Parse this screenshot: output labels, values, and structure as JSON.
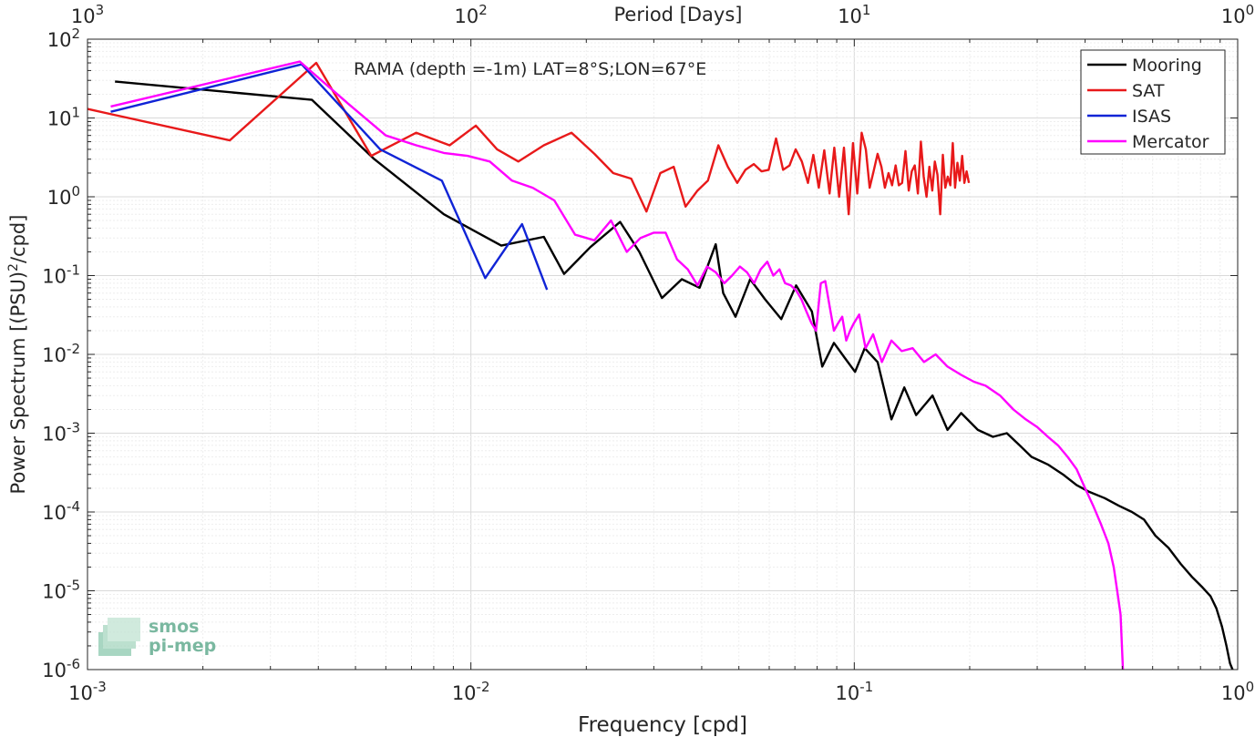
{
  "chart_data": {
    "type": "line",
    "title": "RAMA (depth =-1m) LAT=8°S;LON=67°E",
    "xlabel": "Frequency [cpd]",
    "ylabel_main": "Power Spectrum [(PSU)",
    "ylabel_sup": "2",
    "ylabel_tail": "/cpd]",
    "top_axis_label": "Period [Days]",
    "x_scale": "log",
    "y_scale": "log",
    "xlim": [
      0.001,
      1
    ],
    "ylim": [
      1e-06,
      100
    ],
    "grid": true,
    "legend_position": "top-right",
    "x_ticks": [
      {
        "value": 0.001,
        "base": "10",
        "exp": "-3"
      },
      {
        "value": 0.01,
        "base": "10",
        "exp": "-2"
      },
      {
        "value": 0.1,
        "base": "10",
        "exp": "-1"
      },
      {
        "value": 1,
        "base": "10",
        "exp": "0"
      }
    ],
    "top_ticks": [
      {
        "freq": 0.001,
        "base": "10",
        "exp": "3"
      },
      {
        "freq": 0.01,
        "base": "10",
        "exp": "2"
      },
      {
        "freq": 0.1,
        "base": "10",
        "exp": "1"
      },
      {
        "freq": 1,
        "base": "10",
        "exp": "0"
      }
    ],
    "y_ticks": [
      {
        "value": 100,
        "base": "10",
        "exp": "2"
      },
      {
        "value": 10,
        "base": "10",
        "exp": "1"
      },
      {
        "value": 1,
        "base": "10",
        "exp": "0"
      },
      {
        "value": 0.1,
        "base": "10",
        "exp": "-1"
      },
      {
        "value": 0.01,
        "base": "10",
        "exp": "-2"
      },
      {
        "value": 0.001,
        "base": "10",
        "exp": "-3"
      },
      {
        "value": 0.0001,
        "base": "10",
        "exp": "-4"
      },
      {
        "value": 1e-05,
        "base": "10",
        "exp": "-5"
      },
      {
        "value": 1e-06,
        "base": "10",
        "exp": "-6"
      }
    ],
    "series": [
      {
        "name": "Mooring",
        "color": "#000000",
        "x": [
          0.00118,
          0.00385,
          0.0056,
          0.0085,
          0.012,
          0.0155,
          0.0175,
          0.0205,
          0.0245,
          0.0275,
          0.0315,
          0.0355,
          0.0395,
          0.0435,
          0.0455,
          0.049,
          0.0535,
          0.0585,
          0.0645,
          0.0705,
          0.0775,
          0.0825,
          0.0885,
          0.0945,
          0.1005,
          0.1065,
          0.115,
          0.125,
          0.135,
          0.145,
          0.16,
          0.175,
          0.19,
          0.21,
          0.23,
          0.25,
          0.27,
          0.29,
          0.32,
          0.35,
          0.38,
          0.41,
          0.45,
          0.49,
          0.53,
          0.57,
          0.61,
          0.66,
          0.71,
          0.76,
          0.81,
          0.85,
          0.88,
          0.91,
          0.935,
          0.955,
          0.97
        ],
        "y": [
          29,
          17,
          3,
          0.6,
          0.24,
          0.31,
          0.105,
          0.23,
          0.48,
          0.2,
          0.052,
          0.09,
          0.07,
          0.25,
          0.06,
          0.03,
          0.09,
          0.05,
          0.028,
          0.075,
          0.035,
          0.007,
          0.014,
          0.009,
          0.006,
          0.012,
          0.008,
          0.0015,
          0.0038,
          0.0017,
          0.003,
          0.0011,
          0.0018,
          0.0011,
          0.0009,
          0.001,
          0.0007,
          0.0005,
          0.0004,
          0.0003,
          0.00022,
          0.00018,
          0.00015,
          0.00012,
          0.0001,
          8e-05,
          5e-05,
          3.5e-05,
          2.2e-05,
          1.5e-05,
          1.1e-05,
          8.5e-06,
          6e-06,
          3.5e-06,
          2e-06,
          1.2e-06,
          1e-06
        ]
      },
      {
        "name": "SAT",
        "color": "#e8191a",
        "x": [
          0.001,
          0.00235,
          0.00395,
          0.0055,
          0.0072,
          0.0088,
          0.0103,
          0.0117,
          0.0133,
          0.0155,
          0.0183,
          0.021,
          0.0235,
          0.0262,
          0.0287,
          0.0312,
          0.0338,
          0.0363,
          0.039,
          0.0415,
          0.0442,
          0.0468,
          0.0495,
          0.052,
          0.0547,
          0.0573,
          0.0598,
          0.0625,
          0.0652,
          0.0678,
          0.0703,
          0.073,
          0.0757,
          0.0782,
          0.0808,
          0.0835,
          0.0862,
          0.0887,
          0.0913,
          0.094,
          0.0967,
          0.0992,
          0.1018,
          0.1045,
          0.1072,
          0.1097,
          0.1123,
          0.115,
          0.1177,
          0.1202,
          0.1228,
          0.1255,
          0.1282,
          0.1307,
          0.1333,
          0.136,
          0.1387,
          0.1412,
          0.1438,
          0.1465,
          0.1492,
          0.1517,
          0.1543,
          0.157,
          0.1597,
          0.1622,
          0.1648,
          0.1675,
          0.1702,
          0.1727,
          0.1753,
          0.178,
          0.1807,
          0.1832,
          0.1858,
          0.1885,
          0.1912,
          0.1937,
          0.1963,
          0.199
        ],
        "y": [
          13,
          5.2,
          50,
          3.3,
          6.5,
          4.5,
          8,
          4,
          2.8,
          4.5,
          6.5,
          3.5,
          2,
          1.7,
          0.65,
          2,
          2.4,
          0.75,
          1.2,
          1.6,
          4.5,
          2.4,
          1.5,
          2.2,
          2.6,
          2.1,
          2.2,
          5.5,
          2.2,
          2.5,
          4,
          2.8,
          1.5,
          3.4,
          1.3,
          3.9,
          1.1,
          4.2,
          1,
          4.2,
          0.6,
          4.8,
          1.1,
          6.5,
          4,
          1.3,
          2.1,
          3.5,
          2.4,
          1.3,
          2,
          1.4,
          2.5,
          1.4,
          1.5,
          3.8,
          1.2,
          2.1,
          2.5,
          1.1,
          5,
          1.8,
          1,
          2.4,
          1.2,
          2.8,
          1.9,
          0.6,
          3.4,
          1.3,
          1.8,
          1.4,
          4.8,
          1.3,
          2.7,
          1.6,
          3.3,
          1.5,
          2.1,
          1.5
        ]
      },
      {
        "name": "ISAS",
        "color": "#1024d6",
        "x": [
          0.00115,
          0.00362,
          0.0058,
          0.0084,
          0.0109,
          0.0136,
          0.0158
        ],
        "y": [
          12,
          48,
          4,
          1.6,
          0.093,
          0.45,
          0.066
        ]
      },
      {
        "name": "Mercator",
        "color": "#ff00ff",
        "x": [
          0.00115,
          0.00358,
          0.0048,
          0.006,
          0.0072,
          0.0085,
          0.0098,
          0.0112,
          0.0128,
          0.0145,
          0.0165,
          0.0187,
          0.021,
          0.0232,
          0.0255,
          0.0277,
          0.03,
          0.0322,
          0.0345,
          0.0368,
          0.039,
          0.0413,
          0.0435,
          0.0458,
          0.048,
          0.0503,
          0.0525,
          0.0548,
          0.057,
          0.0593,
          0.0615,
          0.0638,
          0.066,
          0.0683,
          0.0705,
          0.0728,
          0.075,
          0.0773,
          0.0795,
          0.0818,
          0.084,
          0.0863,
          0.0885,
          0.0908,
          0.093,
          0.0953,
          0.0975,
          0.0998,
          0.103,
          0.107,
          0.112,
          0.118,
          0.125,
          0.133,
          0.142,
          0.152,
          0.163,
          0.175,
          0.19,
          0.205,
          0.22,
          0.24,
          0.26,
          0.28,
          0.3,
          0.32,
          0.34,
          0.36,
          0.38,
          0.4,
          0.42,
          0.44,
          0.46,
          0.475,
          0.485,
          0.495,
          0.502
        ],
        "y": [
          14,
          52,
          15,
          6,
          4.5,
          3.6,
          3.3,
          2.8,
          1.6,
          1.3,
          0.9,
          0.33,
          0.28,
          0.5,
          0.2,
          0.3,
          0.35,
          0.35,
          0.16,
          0.12,
          0.075,
          0.13,
          0.11,
          0.08,
          0.1,
          0.13,
          0.11,
          0.08,
          0.12,
          0.15,
          0.1,
          0.12,
          0.08,
          0.075,
          0.065,
          0.05,
          0.035,
          0.025,
          0.02,
          0.08,
          0.085,
          0.04,
          0.02,
          0.025,
          0.03,
          0.015,
          0.02,
          0.025,
          0.032,
          0.012,
          0.018,
          0.008,
          0.015,
          0.011,
          0.012,
          0.008,
          0.01,
          0.007,
          0.0055,
          0.0045,
          0.004,
          0.003,
          0.002,
          0.0015,
          0.0012,
          0.0009,
          0.0007,
          0.0005,
          0.00035,
          0.0002,
          0.00012,
          7e-05,
          4e-05,
          2e-05,
          1e-05,
          5e-06,
          1e-06
        ]
      }
    ],
    "watermark": {
      "line1": "smos",
      "line2": "pi-mep",
      "color": "#6fb49a"
    }
  }
}
